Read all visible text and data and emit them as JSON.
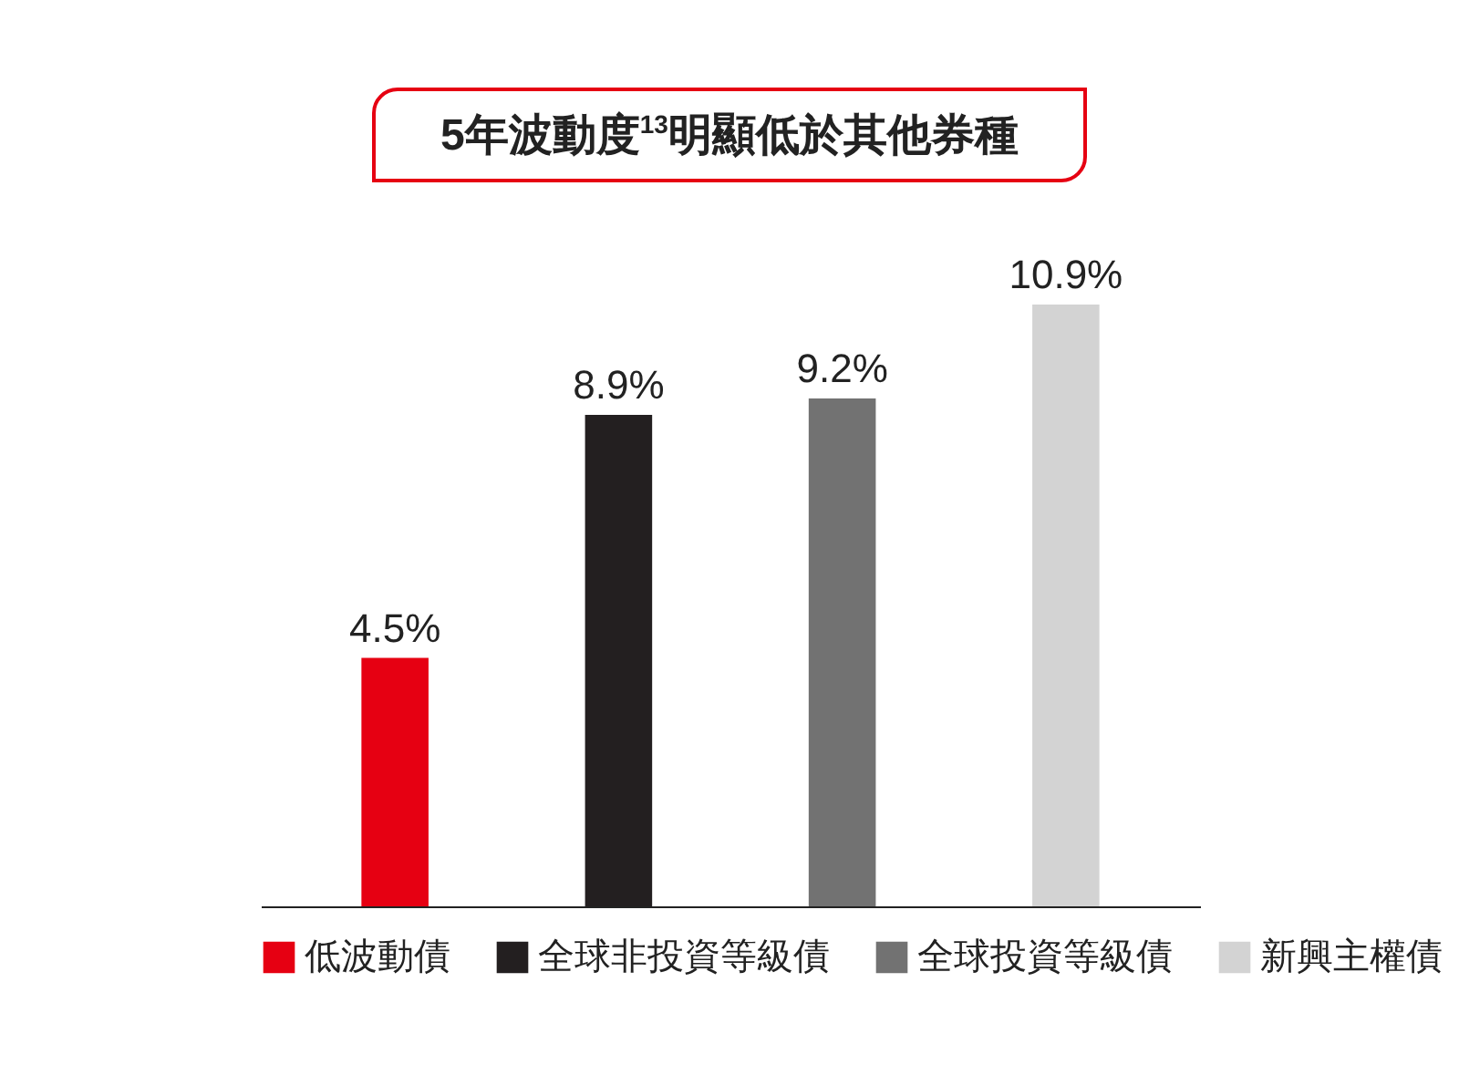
{
  "chart_data": {
    "type": "bar",
    "title": "5年波動度$^{13}$明顯低於其他券種",
    "categories": [
      null,
      null,
      null,
      null
    ],
    "stacked": true,
    "series": [
      {
        "name": "低波動債",
        "color": "#e60012",
        "values": [
          4.5,
          null,
          null,
          null
        ],
        "value_labels": [
          "4.5%",
          null,
          null,
          null
        ]
      },
      {
        "name": "全球非投資等級債",
        "color": "#231f20",
        "values": [
          null,
          8.9,
          null,
          null
        ],
        "value_labels": [
          null,
          "8.9%",
          null,
          null
        ]
      },
      {
        "name": "全球投資等級債",
        "color": "#727272",
        "values": [
          null,
          null,
          9.2,
          null
        ],
        "value_labels": [
          null,
          null,
          "9.2%",
          null
        ]
      },
      {
        "name": "新興主權債",
        "color": "#d3d3d3",
        "values": [
          null,
          null,
          null,
          10.9
        ],
        "value_labels": [
          null,
          null,
          null,
          "10.9%"
        ]
      }
    ],
    "legend": "bottom",
    "grid": false,
    "tick_labels": false
  }
}
